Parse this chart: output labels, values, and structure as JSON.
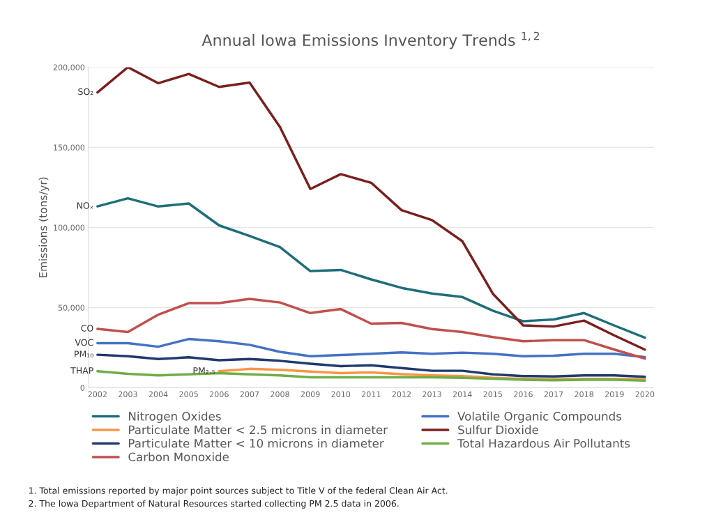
{
  "chart_data": {
    "type": "line",
    "title": "Annual Iowa Emissions Inventory Trends $^{1,2}$",
    "ylabel": "Emissions (tons/yr)",
    "categories": [
      "2002",
      "2003",
      "2004",
      "2005",
      "2006",
      "2007",
      "2008",
      "2009",
      "2010",
      "2011",
      "2012",
      "2013",
      "2014",
      "2015",
      "2016",
      "2017",
      "2018",
      "2019",
      "2020"
    ],
    "series": [
      {
        "name": "Nitrogen Oxides",
        "color": "#1f6e79",
        "values": [
          113200,
          118200,
          113100,
          115000,
          101300,
          94700,
          87800,
          72800,
          73500,
          67600,
          62300,
          58800,
          56600,
          48100,
          41500,
          42600,
          46600,
          38800,
          31200
        ]
      },
      {
        "name": "Volatile Organic Compounds",
        "color": "#4472c4",
        "values": [
          27800,
          27800,
          25600,
          30400,
          29000,
          26800,
          22400,
          19700,
          20400,
          21200,
          22100,
          21200,
          21900,
          21200,
          19700,
          20000,
          21200,
          21200,
          19100
        ]
      },
      {
        "name": "Particulate Matter < 2.5 microns in diameter",
        "color": "#f79646",
        "values": [
          null,
          null,
          null,
          null,
          10300,
          11800,
          11200,
          10100,
          9100,
          9600,
          8500,
          7700,
          7300,
          6200,
          5600,
          5300,
          5600,
          5600,
          5300
        ]
      },
      {
        "name": "Sulfur Dioxide",
        "color": "#7b1f1f",
        "values": [
          184300,
          200000,
          190000,
          195800,
          187700,
          190400,
          162700,
          124000,
          133300,
          127900,
          110800,
          104600,
          91400,
          58700,
          38900,
          38200,
          41900,
          32600,
          23800
        ]
      },
      {
        "name": "Particulate Matter < 10 microns in diameter",
        "color": "#1f3a6e",
        "values": [
          20600,
          19700,
          17900,
          19000,
          17200,
          17900,
          16800,
          15000,
          13500,
          14000,
          12300,
          10600,
          10600,
          8400,
          7300,
          7100,
          7700,
          7700,
          6800
        ]
      },
      {
        "name": "Total Hazardous Air Pollutants",
        "color": "#70ad47",
        "values": [
          10300,
          8700,
          7700,
          8400,
          9100,
          8400,
          7700,
          6500,
          6500,
          6500,
          6500,
          6500,
          6200,
          5600,
          5000,
          4700,
          5000,
          5000,
          4400
        ]
      },
      {
        "name": "Carbon Monoxide",
        "color": "#c0504d",
        "values": [
          36700,
          34800,
          45600,
          52800,
          52800,
          55400,
          53200,
          46600,
          49100,
          40000,
          40400,
          36600,
          34800,
          31600,
          29000,
          29700,
          29700,
          23800,
          18200
        ]
      }
    ],
    "ylim": [
      0,
      200000
    ],
    "yticks": [
      0,
      {
        "value": 50000,
        "label": "50,000"
      },
      {
        "value": 100000,
        "label": "100,000"
      },
      {
        "value": 150000,
        "label": "150,000"
      },
      {
        "value": 200000,
        "label": "200,000"
      }
    ],
    "grid": "y",
    "legend": "bottom",
    "marker": "none",
    "line_style": "solid",
    "annotations": [
      {
        "text": "SO₂",
        "x": "2002",
        "y": 184300
      },
      {
        "text": "NOₓ",
        "x": "2002",
        "y": 113200
      },
      {
        "text": "CO",
        "x": "2002",
        "y": 36700
      },
      {
        "text": "VOC",
        "x": "2002",
        "y": 27800
      },
      {
        "text": "PM₁₀",
        "x": "2002",
        "y": 20600
      },
      {
        "text": "THAP",
        "x": "2002",
        "y": 10300
      },
      {
        "text": "PM₂.₅",
        "x": "2006",
        "y": 10300
      },
      "1. Total emissions reported by major point sources subject to Title V of the federal Clean Air Act.",
      "2. The Iowa Department of Natural Resources started collecting PM 2.5 data in 2006."
    ]
  }
}
